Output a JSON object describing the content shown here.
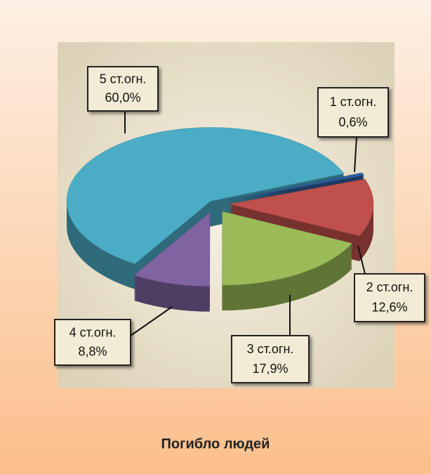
{
  "chart_data": {
    "type": "pie3d",
    "title": "Погибло людей",
    "categories": [
      "1 ст.огн.",
      "2 ст.огн.",
      "3 ст.огн.",
      "4 ст.огн.",
      "5 ст.огн."
    ],
    "values": [
      0.6,
      12.6,
      17.9,
      8.8,
      60.0
    ],
    "value_labels": [
      "0,6%",
      "12,6%",
      "17,9%",
      "8,8%",
      "60,0%"
    ],
    "colors": [
      "#2e5e9e",
      "#c0504d",
      "#9bbb59",
      "#8064a2",
      "#4bacc6"
    ]
  }
}
